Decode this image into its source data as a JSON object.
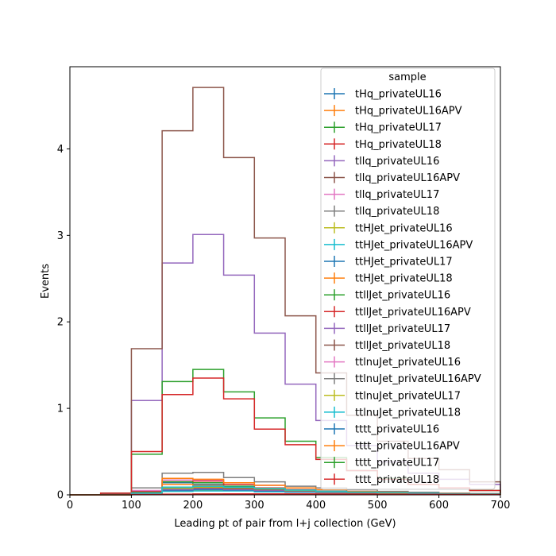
{
  "chart_data": {
    "type": "step-histogram",
    "xlabel": "Leading pt of pair from l+j collection (GeV)",
    "ylabel": "Events",
    "xlim": [
      0,
      700
    ],
    "ylim": [
      0,
      4.95
    ],
    "xticks": [
      0,
      100,
      200,
      300,
      400,
      500,
      600,
      700
    ],
    "yticks": [
      0,
      1,
      2,
      3,
      4
    ],
    "bin_edges": [
      0,
      50,
      100,
      150,
      200,
      250,
      300,
      350,
      400,
      450,
      500,
      550,
      600,
      650,
      700
    ],
    "legend_title": "sample",
    "legend_location": "upper right",
    "grid": false,
    "series": [
      {
        "name": "tHq_privateUL16",
        "color": "#1f77b4",
        "values": [
          0,
          0.002,
          0.03,
          0.14,
          0.12,
          0.09,
          0.06,
          0.04,
          0.03,
          0.02,
          0.015,
          0.01,
          0.008,
          0.006
        ]
      },
      {
        "name": "tHq_privateUL16APV",
        "color": "#ff7f0e",
        "values": [
          0,
          0.002,
          0.03,
          0.12,
          0.11,
          0.08,
          0.05,
          0.035,
          0.025,
          0.018,
          0.012,
          0.009,
          0.007,
          0.005
        ]
      },
      {
        "name": "tHq_privateUL17",
        "color": "#2ca02c",
        "values": [
          0,
          0.002,
          0.03,
          0.15,
          0.14,
          0.1,
          0.07,
          0.05,
          0.035,
          0.025,
          0.018,
          0.012,
          0.01,
          0.007
        ]
      },
      {
        "name": "tHq_privateUL18",
        "color": "#d62728",
        "values": [
          0,
          0.003,
          0.04,
          0.17,
          0.16,
          0.12,
          0.08,
          0.06,
          0.04,
          0.03,
          0.02,
          0.015,
          0.012,
          0.008
        ]
      },
      {
        "name": "tllq_privateUL16",
        "color": "#9467bd",
        "values": [
          0,
          0.01,
          1.09,
          2.68,
          3.01,
          2.54,
          1.87,
          1.28,
          0.86,
          0.57,
          0.38,
          0.25,
          0.18,
          0.12
        ]
      },
      {
        "name": "tllq_privateUL16APV",
        "color": "#8c564b",
        "values": [
          0,
          0.02,
          1.69,
          4.21,
          4.71,
          3.9,
          2.97,
          2.07,
          1.41,
          0.92,
          0.62,
          0.42,
          0.29,
          0.15
        ]
      },
      {
        "name": "tllq_privateUL17",
        "color": "#e377c2",
        "values": [
          0,
          0.002,
          0.05,
          0.17,
          0.17,
          0.14,
          0.11,
          0.08,
          0.06,
          0.04,
          0.03,
          0.02,
          0.015,
          0.01
        ]
      },
      {
        "name": "tllq_privateUL18",
        "color": "#7f7f7f",
        "values": [
          0,
          0.003,
          0.08,
          0.25,
          0.26,
          0.2,
          0.15,
          0.1,
          0.08,
          0.06,
          0.04,
          0.03,
          0.02,
          0.015
        ]
      },
      {
        "name": "ttHJet_privateUL16",
        "color": "#bcbd22",
        "values": [
          0,
          0.001,
          0.01,
          0.04,
          0.05,
          0.05,
          0.04,
          0.03,
          0.025,
          0.02,
          0.015,
          0.01,
          0.008,
          0.006
        ]
      },
      {
        "name": "ttHJet_privateUL16APV",
        "color": "#17becf",
        "values": [
          0,
          0.001,
          0.01,
          0.04,
          0.045,
          0.045,
          0.035,
          0.03,
          0.022,
          0.018,
          0.013,
          0.01,
          0.007,
          0.005
        ]
      },
      {
        "name": "ttHJet_privateUL17",
        "color": "#1f77b4",
        "values": [
          0,
          0.001,
          0.012,
          0.05,
          0.06,
          0.055,
          0.045,
          0.035,
          0.03,
          0.022,
          0.017,
          0.012,
          0.009,
          0.007
        ]
      },
      {
        "name": "ttHJet_privateUL18",
        "color": "#ff7f0e",
        "values": [
          0,
          0.002,
          0.02,
          0.19,
          0.18,
          0.14,
          0.11,
          0.08,
          0.06,
          0.04,
          0.03,
          0.02,
          0.015,
          0.01
        ]
      },
      {
        "name": "ttllJet_privateUL16",
        "color": "#2ca02c",
        "values": [
          0,
          0.02,
          0.47,
          1.31,
          1.45,
          1.19,
          0.89,
          0.62,
          0.43,
          0.28,
          0.19,
          0.12,
          0.08,
          0.05
        ]
      },
      {
        "name": "ttllJet_privateUL16APV",
        "color": "#d62728",
        "values": [
          0,
          0.02,
          0.5,
          1.16,
          1.35,
          1.11,
          0.76,
          0.58,
          0.41,
          0.28,
          0.18,
          0.12,
          0.08,
          0.05
        ]
      },
      {
        "name": "ttllJet_privateUL17",
        "color": "#9467bd",
        "values": [
          0,
          0.002,
          0.02,
          0.06,
          0.07,
          0.06,
          0.05,
          0.04,
          0.03,
          0.025,
          0.02,
          0.015,
          0.01,
          0.008
        ]
      },
      {
        "name": "ttllJet_privateUL18",
        "color": "#8c564b",
        "values": [
          0,
          0.002,
          0.02,
          0.07,
          0.08,
          0.07,
          0.06,
          0.045,
          0.035,
          0.028,
          0.022,
          0.016,
          0.012,
          0.009
        ]
      },
      {
        "name": "ttlnuJet_privateUL16",
        "color": "#e377c2",
        "values": [
          0,
          0.001,
          0.02,
          0.08,
          0.1,
          0.09,
          0.07,
          0.05,
          0.04,
          0.03,
          0.022,
          0.016,
          0.012,
          0.009
        ]
      },
      {
        "name": "ttlnuJet_privateUL16APV",
        "color": "#7f7f7f",
        "values": [
          0,
          0.001,
          0.018,
          0.07,
          0.09,
          0.08,
          0.065,
          0.045,
          0.035,
          0.028,
          0.02,
          0.015,
          0.011,
          0.008
        ]
      },
      {
        "name": "ttlnuJet_privateUL17",
        "color": "#bcbd22",
        "values": [
          0,
          0.001,
          0.02,
          0.08,
          0.09,
          0.085,
          0.07,
          0.05,
          0.04,
          0.03,
          0.022,
          0.016,
          0.012,
          0.009
        ]
      },
      {
        "name": "ttlnuJet_privateUL18",
        "color": "#17becf",
        "values": [
          0,
          0.001,
          0.02,
          0.09,
          0.1,
          0.09,
          0.075,
          0.055,
          0.042,
          0.032,
          0.024,
          0.018,
          0.013,
          0.01
        ]
      },
      {
        "name": "tttt_privateUL16",
        "color": "#1f77b4",
        "values": [
          0,
          0,
          0.002,
          0.006,
          0.008,
          0.009,
          0.01,
          0.009,
          0.008,
          0.007,
          0.006,
          0.005,
          0.004,
          0.003
        ]
      },
      {
        "name": "tttt_privateUL16APV",
        "color": "#ff7f0e",
        "values": [
          0,
          0,
          0.002,
          0.006,
          0.008,
          0.009,
          0.01,
          0.009,
          0.008,
          0.007,
          0.006,
          0.005,
          0.004,
          0.003
        ]
      },
      {
        "name": "tttt_privateUL17",
        "color": "#2ca02c",
        "values": [
          0,
          0,
          0.002,
          0.007,
          0.009,
          0.01,
          0.011,
          0.01,
          0.009,
          0.008,
          0.007,
          0.006,
          0.005,
          0.004
        ]
      },
      {
        "name": "tttt_privateUL18",
        "color": "#d62728",
        "values": [
          0,
          0,
          0.003,
          0.008,
          0.01,
          0.011,
          0.012,
          0.011,
          0.01,
          0.009,
          0.008,
          0.007,
          0.006,
          0.005
        ]
      }
    ]
  }
}
